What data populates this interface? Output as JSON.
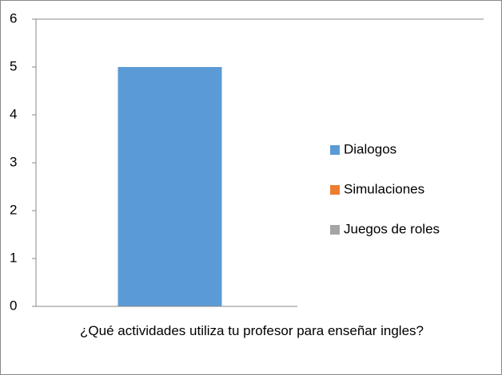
{
  "chart_data": {
    "type": "bar",
    "categories": [
      "¿Qué actividades utiliza tu profesor para enseñar ingles?"
    ],
    "series": [
      {
        "name": "Dialogos",
        "color": "#5b9bd5",
        "values": [
          5
        ]
      },
      {
        "name": "Simulaciones",
        "color": "#ed7d31",
        "values": [
          0
        ]
      },
      {
        "name": "Juegos de roles",
        "color": "#a5a5a5",
        "values": [
          0
        ]
      }
    ],
    "ylim": [
      0,
      6
    ],
    "yticks": [
      0,
      1,
      2,
      3,
      4,
      5,
      6
    ],
    "grid": false,
    "legend": "right"
  }
}
